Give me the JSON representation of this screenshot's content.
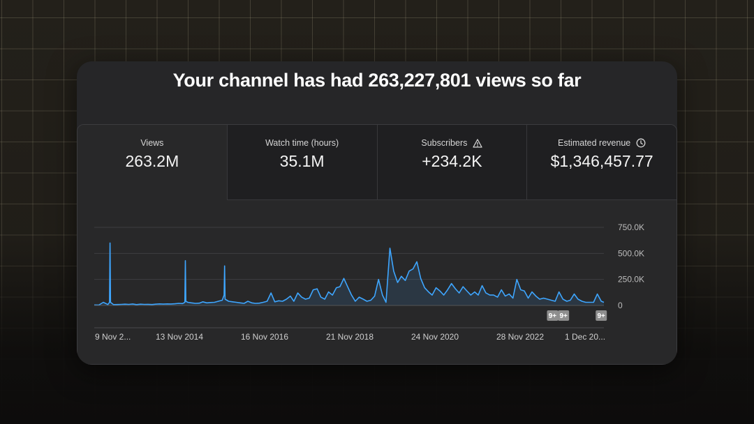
{
  "headline": "Your channel has had 263,227,801 views so far",
  "metrics": [
    {
      "label": "Views",
      "value": "263.2M",
      "icon": null,
      "selected": true
    },
    {
      "label": "Watch time (hours)",
      "value": "35.1M",
      "icon": null,
      "selected": false
    },
    {
      "label": "Subscribers",
      "value": "+234.2K",
      "icon": "warning-icon",
      "selected": false
    },
    {
      "label": "Estimated revenue",
      "value": "$1,346,457.77",
      "icon": "clock-icon",
      "selected": false
    }
  ],
  "colors": {
    "line": "#3ea6ff",
    "card": "#262628",
    "badge": "#8e8e8e"
  },
  "chart_data": {
    "type": "line",
    "ylim": [
      0,
      750000
    ],
    "y_ticks": [
      "750.0K",
      "500.0K",
      "250.0K",
      "0"
    ],
    "x_ticks": [
      "9 Nov 2...",
      "13 Nov 2014",
      "16 Nov 2016",
      "21 Nov 2018",
      "24 Nov 2020",
      "28 Nov 2022",
      "1 Dec 20..."
    ],
    "x": [
      "2012-11-09",
      "2012-12-15",
      "2013-01-20",
      "2013-02-25",
      "2013-03-10",
      "2013-03-14",
      "2013-03-18",
      "2013-04-10",
      "2013-05-10",
      "2013-06-10",
      "2013-07-10",
      "2013-08-10",
      "2013-09-10",
      "2013-10-10",
      "2013-11-10",
      "2013-12-10",
      "2014-01-10",
      "2014-02-10",
      "2014-03-10",
      "2014-04-10",
      "2014-05-10",
      "2014-06-10",
      "2014-07-10",
      "2014-08-10",
      "2014-09-10",
      "2014-10-10",
      "2014-10-28",
      "2014-11-01",
      "2014-11-05",
      "2014-11-20",
      "2014-12-20",
      "2015-01-20",
      "2015-02-20",
      "2015-03-20",
      "2015-04-20",
      "2015-05-20",
      "2015-06-20",
      "2015-07-20",
      "2015-08-20",
      "2015-09-04",
      "2015-09-08",
      "2015-09-12",
      "2015-10-10",
      "2015-11-10",
      "2015-12-10",
      "2016-01-10",
      "2016-02-10",
      "2016-03-10",
      "2016-04-10",
      "2016-05-10",
      "2016-06-10",
      "2016-07-10",
      "2016-08-10",
      "2016-09-10",
      "2016-10-10",
      "2016-11-10",
      "2016-12-10",
      "2017-01-10",
      "2017-02-10",
      "2017-03-10",
      "2017-04-10",
      "2017-05-10",
      "2017-06-10",
      "2017-07-10",
      "2017-08-10",
      "2017-09-10",
      "2017-10-10",
      "2017-11-10",
      "2017-12-10",
      "2018-01-10",
      "2018-02-10",
      "2018-03-10",
      "2018-04-10",
      "2018-05-10",
      "2018-06-10",
      "2018-07-10",
      "2018-08-10",
      "2018-09-10",
      "2018-10-10",
      "2018-11-10",
      "2018-12-10",
      "2019-01-10",
      "2019-02-10",
      "2019-03-10",
      "2019-04-10",
      "2019-05-10",
      "2019-06-10",
      "2019-07-10",
      "2019-08-10",
      "2019-09-10",
      "2019-10-10",
      "2019-11-10",
      "2019-12-10",
      "2020-01-10",
      "2020-02-10",
      "2020-03-10",
      "2020-04-10",
      "2020-05-10",
      "2020-06-10",
      "2020-07-10",
      "2020-08-10",
      "2020-09-10",
      "2020-10-10",
      "2020-11-10",
      "2020-12-10",
      "2021-01-10",
      "2021-02-10",
      "2021-03-10",
      "2021-04-10",
      "2021-05-10",
      "2021-06-10",
      "2021-07-10",
      "2021-08-10",
      "2021-09-10",
      "2021-10-10",
      "2021-11-10",
      "2021-12-10",
      "2022-01-10",
      "2022-02-10",
      "2022-03-10",
      "2022-04-10",
      "2022-05-10",
      "2022-06-10",
      "2022-07-10",
      "2022-08-10",
      "2022-09-10",
      "2022-10-10",
      "2022-11-10",
      "2022-12-10",
      "2023-01-10",
      "2023-02-10",
      "2023-03-10",
      "2023-04-10",
      "2023-05-10",
      "2023-06-10",
      "2023-07-10",
      "2023-08-10",
      "2023-09-10",
      "2023-10-10",
      "2023-11-10",
      "2023-12-01"
    ],
    "values": [
      5000,
      4000,
      30000,
      9000,
      30000,
      600000,
      30000,
      8000,
      9000,
      10000,
      12000,
      10000,
      14000,
      8000,
      12000,
      10000,
      11000,
      9000,
      12000,
      15000,
      13000,
      15000,
      14000,
      16000,
      20000,
      18000,
      30000,
      430000,
      40000,
      30000,
      25000,
      20000,
      22000,
      35000,
      25000,
      28000,
      30000,
      40000,
      50000,
      100000,
      380000,
      60000,
      40000,
      35000,
      30000,
      25000,
      20000,
      40000,
      25000,
      20000,
      22000,
      30000,
      40000,
      120000,
      35000,
      45000,
      40000,
      60000,
      90000,
      40000,
      120000,
      80000,
      60000,
      70000,
      150000,
      160000,
      80000,
      60000,
      130000,
      100000,
      170000,
      180000,
      260000,
      180000,
      100000,
      40000,
      80000,
      60000,
      40000,
      50000,
      90000,
      250000,
      100000,
      30000,
      550000,
      330000,
      220000,
      280000,
      240000,
      330000,
      350000,
      420000,
      260000,
      170000,
      130000,
      100000,
      170000,
      140000,
      100000,
      150000,
      210000,
      160000,
      120000,
      180000,
      140000,
      100000,
      130000,
      100000,
      190000,
      120000,
      100000,
      100000,
      80000,
      150000,
      90000,
      110000,
      70000,
      250000,
      150000,
      140000,
      70000,
      130000,
      90000,
      60000,
      70000,
      60000,
      50000,
      40000,
      130000,
      60000,
      40000,
      50000,
      110000,
      60000,
      40000,
      30000,
      30000,
      30000,
      110000,
      40000,
      30000
    ]
  },
  "badges": [
    {
      "label": "9+",
      "date": "2022-10-20"
    },
    {
      "label": "9+",
      "date": "2023-01-15"
    },
    {
      "label": "9+",
      "date": "2023-11-10"
    }
  ]
}
